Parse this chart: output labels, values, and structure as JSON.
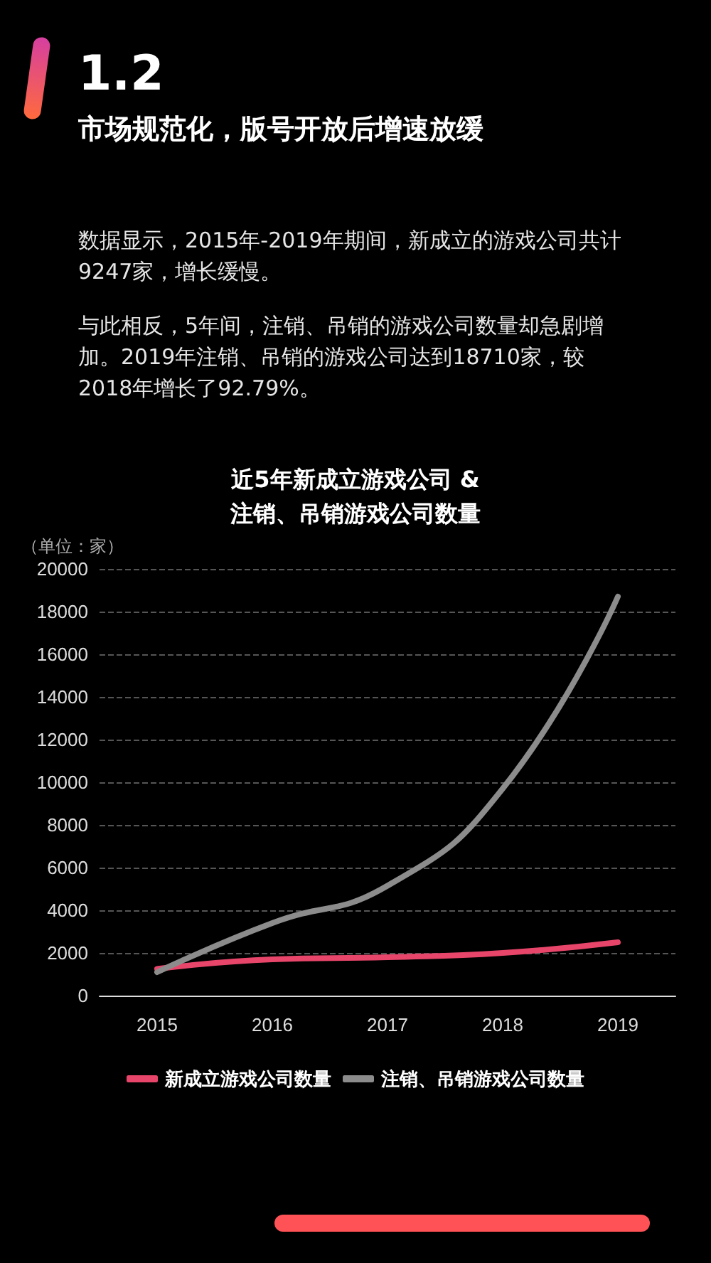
{
  "chart_data": {
    "type": "line",
    "title": "近5年新成立游戏公司 &\n注销、吊销游戏公司数量",
    "annotations": [
      "1.2",
      "市场规范化，版号开放后增速放缓",
      "数据显示，2015年-2019年期间，新成立的游戏公司共计9247家，增长缓慢。",
      "与此相反，5年间，注销、吊销的游戏公司数量却急剧增加。2019年注销、吊销的游戏公司达到18710家，较2018年增长了92.79%。"
    ],
    "ylabel": "（单位：家）",
    "categories": [
      "2015",
      "2016",
      "2017",
      "2018",
      "2019"
    ],
    "series": [
      {
        "name": "新成立游戏公司数量",
        "color": "#e8456a",
        "values": [
          1250,
          1700,
          1800,
          2000,
          2500
        ]
      },
      {
        "name": "注销、吊销游戏公司数量",
        "color": "#8c8c8c",
        "values": [
          1100,
          3400,
          5150,
          9700,
          18700
        ]
      }
    ],
    "ylim": [
      0,
      20000
    ],
    "yticks": [
      0,
      2000,
      4000,
      6000,
      8000,
      10000,
      12000,
      14000,
      16000,
      18000,
      20000
    ],
    "grid": "y",
    "legend": "bottom",
    "marker": "none",
    "line_style": "solid"
  }
}
